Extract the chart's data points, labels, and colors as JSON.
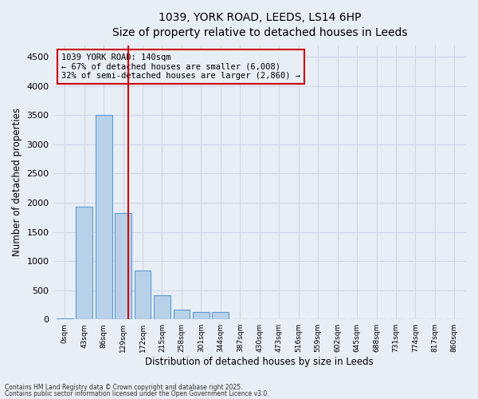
{
  "title_line1": "1039, YORK ROAD, LEEDS, LS14 6HP",
  "title_line2": "Size of property relative to detached houses in Leeds",
  "xlabel": "Distribution of detached houses by size in Leeds",
  "ylabel": "Number of detached properties",
  "categories": [
    "0sqm",
    "43sqm",
    "86sqm",
    "129sqm",
    "172sqm",
    "215sqm",
    "258sqm",
    "301sqm",
    "344sqm",
    "387sqm",
    "430sqm",
    "473sqm",
    "516sqm",
    "559sqm",
    "602sqm",
    "645sqm",
    "688sqm",
    "731sqm",
    "774sqm",
    "817sqm",
    "860sqm"
  ],
  "values": [
    10,
    1930,
    3510,
    1820,
    840,
    420,
    170,
    130,
    120,
    0,
    0,
    0,
    0,
    0,
    0,
    0,
    0,
    0,
    0,
    0,
    0
  ],
  "bar_color": "#b8d0e8",
  "bar_edge_color": "#5b9bd5",
  "grid_color": "#d0d8e8",
  "background_color": "#e8eef5",
  "vline_color": "#cc0000",
  "annotation_text": "1039 YORK ROAD: 140sqm\n← 67% of detached houses are smaller (6,008)\n32% of semi-detached houses are larger (2,860) →",
  "ylim": [
    0,
    4700
  ],
  "yticks": [
    0,
    500,
    1000,
    1500,
    2000,
    2500,
    3000,
    3500,
    4000,
    4500
  ],
  "footnote1": "Contains HM Land Registry data © Crown copyright and database right 2025.",
  "footnote2": "Contains public sector information licensed under the Open Government Licence v3.0."
}
